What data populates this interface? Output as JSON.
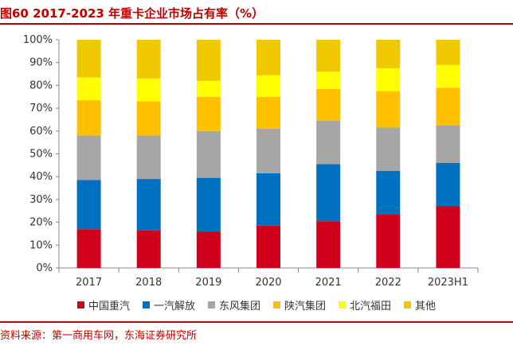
{
  "title": "图60  2017-2023 年重卡企业市场占有率（%）",
  "source": "资料来源：第一商用车网，东海证券研究所",
  "colors": {
    "一汽解放": "#0070c0",
    "中国重汽": "#d0021b",
    "东风集团": "#a6a6a6",
    "陕汽集团": "#ffc000",
    "北汽福田": "#ffff00",
    "其他": "#f0c800"
  },
  "chart_data": {
    "type": "bar",
    "stacked": true,
    "categories": [
      "2017",
      "2018",
      "2019",
      "2020",
      "2021",
      "2022",
      "2023H1"
    ],
    "ylim": [
      0,
      100
    ],
    "yticks": [
      "0%",
      "10%",
      "20%",
      "30%",
      "40%",
      "50%",
      "60%",
      "70%",
      "80%",
      "90%",
      "100%"
    ],
    "grid": false,
    "legend_position": "bottom",
    "series": [
      {
        "name": "中国重汽",
        "values": [
          17,
          16.5,
          16,
          18.5,
          20.5,
          23.5,
          27
        ]
      },
      {
        "name": "一汽解放",
        "values": [
          21.5,
          22.5,
          23.5,
          23,
          25,
          19,
          19
        ]
      },
      {
        "name": "东风集团",
        "values": [
          19.5,
          19,
          20.5,
          19.5,
          19,
          19,
          16.5
        ]
      },
      {
        "name": "陕汽集团",
        "values": [
          15.5,
          15,
          15,
          14,
          14,
          16,
          16.5
        ]
      },
      {
        "name": "北汽福田",
        "values": [
          10,
          10,
          7,
          9.5,
          7.5,
          10,
          10
        ]
      },
      {
        "name": "其他",
        "values": [
          16.5,
          17,
          18,
          15.5,
          14,
          12.5,
          11
        ]
      }
    ]
  }
}
